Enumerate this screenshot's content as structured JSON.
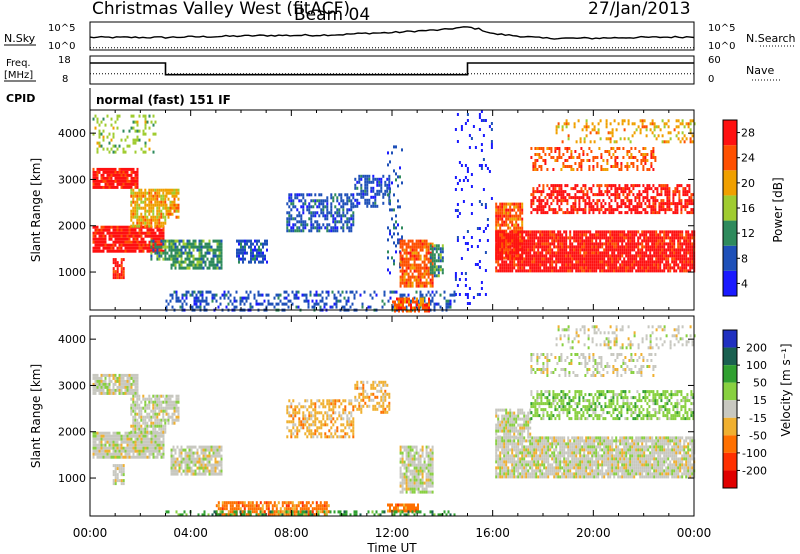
{
  "header": {
    "station": "Christmas Valley West (fitACF)",
    "beam": "Beam 04",
    "date": "27/Jan/2013"
  },
  "chart_data": [
    {
      "type": "line",
      "panel": "noise",
      "left_label": "N.Sky",
      "right_label": "N.Search",
      "left_ticks": [
        "10^5",
        "10^0"
      ],
      "right_ticks": [
        "10^5",
        "10^0"
      ],
      "series": [
        {
          "name": "N.Sky",
          "style": "solid",
          "x": [
            0,
            1,
            2,
            3,
            4,
            5,
            6,
            7,
            8,
            9,
            10,
            11,
            12,
            13,
            14,
            14.5,
            15,
            15.5,
            16,
            17,
            18,
            19,
            20,
            21,
            22,
            23,
            24
          ],
          "y": [
            0.45,
            0.45,
            0.45,
            0.45,
            0.47,
            0.48,
            0.5,
            0.52,
            0.52,
            0.53,
            0.55,
            0.6,
            0.62,
            0.68,
            0.72,
            0.78,
            0.82,
            0.74,
            0.58,
            0.5,
            0.42,
            0.42,
            0.42,
            0.44,
            0.45,
            0.46,
            0.47
          ]
        },
        {
          "name": "N.Search",
          "style": "dotted",
          "x": [
            0,
            24
          ],
          "y": [
            0.08,
            0.08
          ]
        }
      ]
    },
    {
      "type": "line",
      "panel": "frequency",
      "left_label": [
        "Freq.",
        "[MHz]"
      ],
      "right_label": "Nave",
      "left_ticks": [
        "18",
        "8"
      ],
      "right_ticks": [
        "60",
        "0"
      ],
      "series": [
        {
          "name": "Freq.",
          "style": "solid",
          "x": [
            0,
            3,
            3,
            15,
            15,
            24
          ],
          "y": [
            15,
            15,
            10,
            10,
            15,
            15
          ]
        },
        {
          "name": "Nave",
          "style": "dotted",
          "x": [
            0,
            24
          ],
          "y": [
            22,
            22
          ]
        }
      ]
    },
    {
      "type": "heatmap",
      "panel": "power",
      "cpid_label": "CPID",
      "cpid_text": "normal (fast) 151 IF",
      "ylabel": "Slant Range [km]",
      "yticks": [
        1000,
        2000,
        3000,
        4000
      ],
      "ylim": [
        180,
        4500
      ],
      "xlim": [
        0,
        24
      ],
      "colorbar": {
        "label": "Power [dB]",
        "ticks": [
          4,
          8,
          12,
          16,
          20,
          24,
          28
        ],
        "colors": [
          "#1a1aff",
          "#1e50b8",
          "#2e8a5c",
          "#a0cc30",
          "#f0a000",
          "#ff5000",
          "#ff1010"
        ]
      },
      "regions": [
        {
          "x": [
            0.1,
            1.9
          ],
          "y": [
            2850,
            3250
          ],
          "level": 6,
          "density": 0.9
        },
        {
          "x": [
            0.1,
            2.9
          ],
          "y": [
            1450,
            2000
          ],
          "level": 6,
          "density": 0.9
        },
        {
          "x": [
            0.9,
            1.3
          ],
          "y": [
            900,
            1300
          ],
          "level": 6,
          "density": 0.85
        },
        {
          "x": [
            1.6,
            3.0
          ],
          "y": [
            2000,
            2800
          ],
          "level": 4,
          "density": 0.8
        },
        {
          "x": [
            0.1,
            2.6
          ],
          "y": [
            3600,
            4400
          ],
          "level": 3,
          "density": 0.25
        },
        {
          "x": [
            3.0,
            3.5
          ],
          "y": [
            2200,
            2800
          ],
          "level": 4,
          "density": 0.75
        },
        {
          "x": [
            3.2,
            5.2
          ],
          "y": [
            1100,
            1700
          ],
          "level": 2,
          "density": 0.8
        },
        {
          "x": [
            2.4,
            3.2
          ],
          "y": [
            1300,
            1700
          ],
          "level": 2,
          "density": 0.8
        },
        {
          "x": [
            5.8,
            7.0
          ],
          "y": [
            1200,
            1700
          ],
          "level": 1,
          "density": 0.6
        },
        {
          "x": [
            7.8,
            10.5
          ],
          "y": [
            1900,
            2700
          ],
          "level": 1,
          "density": 0.55
        },
        {
          "x": [
            10.5,
            11.9
          ],
          "y": [
            2400,
            3100
          ],
          "level": 1,
          "density": 0.55
        },
        {
          "x": [
            11.8,
            12.4
          ],
          "y": [
            1000,
            3800
          ],
          "level": 1,
          "density": 0.15
        },
        {
          "x": [
            12.3,
            13.6
          ],
          "y": [
            700,
            1700
          ],
          "level": 5,
          "density": 0.85
        },
        {
          "x": [
            13.5,
            14.0
          ],
          "y": [
            900,
            1600
          ],
          "level": 2,
          "density": 0.7
        },
        {
          "x": [
            14.5,
            16.0
          ],
          "y": [
            300,
            4500
          ],
          "level": 0,
          "density": 0.08
        },
        {
          "x": [
            3.0,
            14.5
          ],
          "y": [
            180,
            600
          ],
          "level": 1,
          "density": 0.35
        },
        {
          "x": [
            12.0,
            13.5
          ],
          "y": [
            180,
            450
          ],
          "level": 5,
          "density": 0.7
        },
        {
          "x": [
            16.1,
            17.2
          ],
          "y": [
            1300,
            2500
          ],
          "level": 5,
          "density": 0.85
        },
        {
          "x": [
            16.1,
            24.0
          ],
          "y": [
            1000,
            1900
          ],
          "level": 6,
          "density": 0.9
        },
        {
          "x": [
            17.5,
            24.0
          ],
          "y": [
            2300,
            2900
          ],
          "level": 6,
          "density": 0.6
        },
        {
          "x": [
            17.5,
            22.5
          ],
          "y": [
            3200,
            3700
          ],
          "level": 5,
          "density": 0.4
        },
        {
          "x": [
            18.5,
            24.0
          ],
          "y": [
            3800,
            4300
          ],
          "level": 4,
          "density": 0.25
        }
      ]
    },
    {
      "type": "heatmap",
      "panel": "velocity",
      "ylabel": "Slant Range [km]",
      "xlabel": "Time UT",
      "xticks": [
        "00:00",
        "04:00",
        "08:00",
        "12:00",
        "16:00",
        "20:00",
        "00:00"
      ],
      "yticks": [
        1000,
        2000,
        3000,
        4000
      ],
      "ylim": [
        180,
        4500
      ],
      "xlim": [
        0,
        24
      ],
      "colorbar": {
        "label": "Velocity [m s⁻¹]",
        "ticks": [
          200,
          100,
          50,
          15,
          -15,
          -50,
          -100,
          -200
        ],
        "colors": [
          "#2030c0",
          "#1a6050",
          "#30a030",
          "#88d040",
          "#c8c8c0",
          "#f0b030",
          "#ff7000",
          "#ff3000",
          "#e00000"
        ]
      },
      "regions": [
        {
          "x": [
            0.1,
            1.9
          ],
          "y": [
            2850,
            3250
          ],
          "level": 4,
          "density": 0.9
        },
        {
          "x": [
            0.1,
            2.9
          ],
          "y": [
            1450,
            2000
          ],
          "level": 4,
          "density": 0.9
        },
        {
          "x": [
            0.9,
            1.3
          ],
          "y": [
            900,
            1300
          ],
          "level": 4,
          "density": 0.85
        },
        {
          "x": [
            1.6,
            3.0
          ],
          "y": [
            2000,
            2800
          ],
          "level": 4,
          "density": 0.8
        },
        {
          "x": [
            3.0,
            3.5
          ],
          "y": [
            2200,
            2800
          ],
          "level": 4,
          "density": 0.75
        },
        {
          "x": [
            3.2,
            5.2
          ],
          "y": [
            1100,
            1700
          ],
          "level": 4,
          "density": 0.8
        },
        {
          "x": [
            7.8,
            10.5
          ],
          "y": [
            1900,
            2700
          ],
          "level": 5,
          "density": 0.5
        },
        {
          "x": [
            10.5,
            11.9
          ],
          "y": [
            2400,
            3100
          ],
          "level": 5,
          "density": 0.5
        },
        {
          "x": [
            12.3,
            13.6
          ],
          "y": [
            700,
            1700
          ],
          "level": 4,
          "density": 0.8
        },
        {
          "x": [
            5.0,
            9.5
          ],
          "y": [
            200,
            500
          ],
          "level": 6,
          "density": 0.75
        },
        {
          "x": [
            11.8,
            13.0
          ],
          "y": [
            300,
            450
          ],
          "level": 6,
          "density": 0.85
        },
        {
          "x": [
            3.0,
            14.5
          ],
          "y": [
            180,
            300
          ],
          "level": 2,
          "density": 0.45
        },
        {
          "x": [
            16.1,
            24.0
          ],
          "y": [
            1000,
            1900
          ],
          "level": 4,
          "density": 0.9
        },
        {
          "x": [
            16.1,
            17.5
          ],
          "y": [
            1900,
            2500
          ],
          "level": 4,
          "density": 0.8
        },
        {
          "x": [
            17.5,
            24.0
          ],
          "y": [
            2300,
            2900
          ],
          "level": 3,
          "density": 0.55
        },
        {
          "x": [
            17.5,
            22.5
          ],
          "y": [
            3200,
            3700
          ],
          "level": 4,
          "density": 0.35
        },
        {
          "x": [
            18.5,
            24.0
          ],
          "y": [
            3800,
            4300
          ],
          "level": 4,
          "density": 0.25
        }
      ]
    }
  ]
}
